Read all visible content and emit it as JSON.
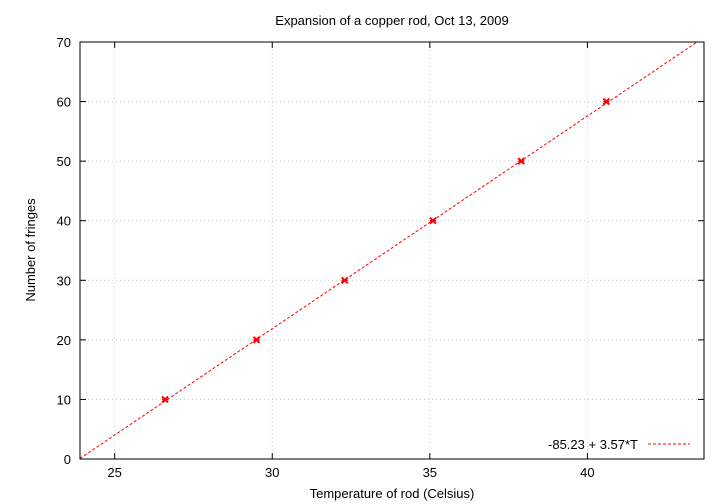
{
  "chart_data": {
    "type": "scatter",
    "title": "Expansion of a copper rod, Oct 13, 2009",
    "xlabel": "Temperature of rod (Celsius)",
    "ylabel": "Number of fringes",
    "xlim": [
      23.9,
      43.7
    ],
    "ylim": [
      0,
      70
    ],
    "xticks": [
      25,
      30,
      35,
      40
    ],
    "yticks": [
      0,
      10,
      20,
      30,
      40,
      50,
      60,
      70
    ],
    "grid": true,
    "legend_position": "bottom-right",
    "series": [
      {
        "kind": "points",
        "x": [
          26.6,
          29.5,
          32.3,
          35.1,
          37.9,
          40.6
        ],
        "y": [
          10,
          20,
          30,
          40,
          50,
          60
        ],
        "color": "#ff0000"
      },
      {
        "kind": "fit-line",
        "name": "-85.23 + 3.57*T",
        "intercept": -85.23,
        "slope": 3.57,
        "color": "#ff0000"
      }
    ]
  }
}
